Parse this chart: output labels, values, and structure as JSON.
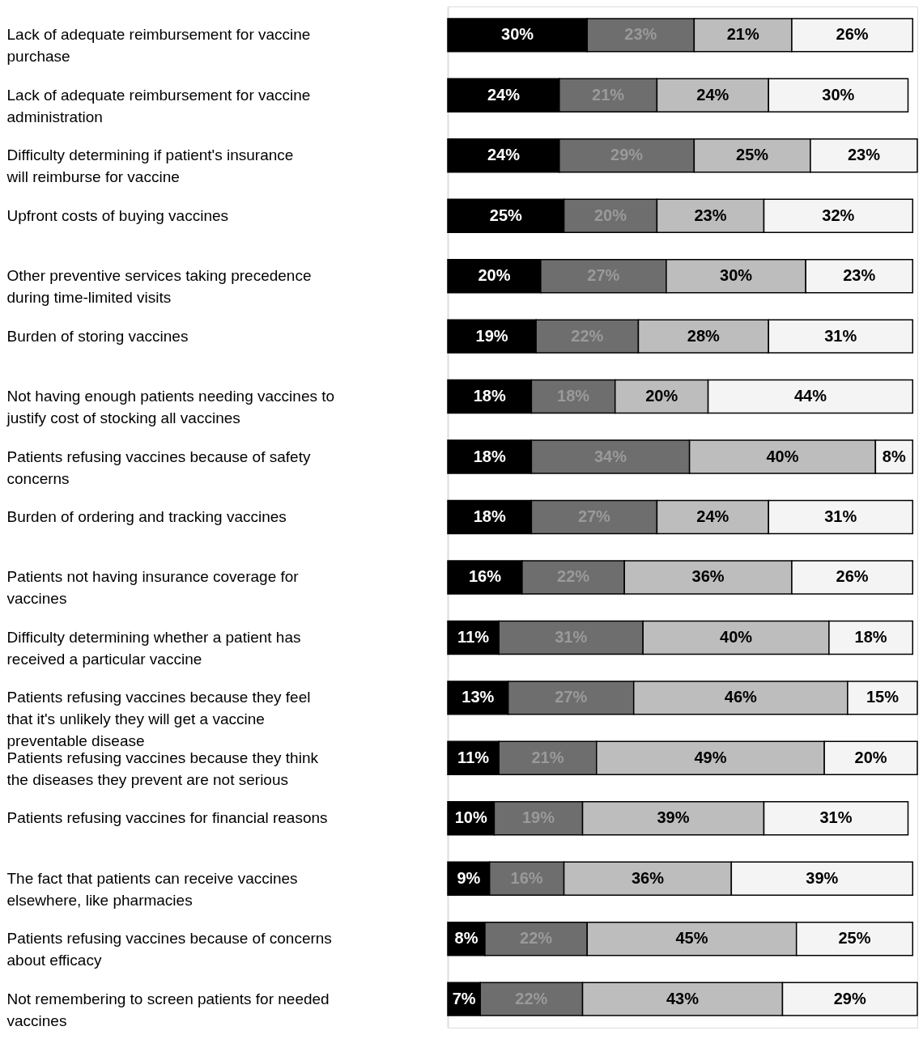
{
  "chart_data": {
    "type": "bar",
    "orientation": "horizontal",
    "stacked": true,
    "tick_labels": "y",
    "categories": [
      "Lack of adequate reimbursement for vaccine purchase",
      "Lack of adequate reimbursement for vaccine administration",
      "Difficulty determining if patient's insurance will reimburse for vaccine",
      "Upfront costs of buying vaccines",
      "Other preventive services taking precedence during time-limited visits",
      "Burden of storing vaccines",
      "Not having enough patients needing vaccines to justify cost of stocking all vaccines",
      "Patients refusing vaccines because of safety concerns",
      "Burden of ordering and tracking vaccines",
      "Patients not having insurance coverage for vaccines",
      "Difficulty determining whether a patient has received a particular vaccine",
      "Patients refusing vaccines because they feel that it's unlikely they will get a vaccine preventable disease",
      "Patients refusing vaccines because they think the diseases they prevent are not serious",
      "Patients refusing vaccines for financial reasons",
      "The fact that patients can receive vaccines elsewhere, like pharmacies",
      "Patients refusing vaccines because of concerns about efficacy",
      "Not remembering to screen patients for needed vaccines"
    ],
    "series": [
      {
        "color": "#000000",
        "values": [
          30,
          24,
          24,
          25,
          20,
          19,
          18,
          18,
          18,
          16,
          11,
          13,
          11,
          10,
          9,
          8,
          7
        ],
        "value_labels": [
          "30%",
          "24%",
          "24%",
          "25%",
          "20%",
          "19%",
          "18%",
          "18%",
          "18%",
          "16%",
          "11%",
          "13%",
          "11%",
          "10%",
          "9%",
          "8%",
          "7%"
        ]
      },
      {
        "color": "#6e6e6e",
        "values": [
          23,
          21,
          29,
          20,
          27,
          22,
          18,
          34,
          27,
          22,
          31,
          27,
          21,
          19,
          16,
          22,
          22
        ],
        "value_labels": [
          "23%",
          "21%",
          "29%",
          "20%",
          "27%",
          "22%",
          "18%",
          "34%",
          "27%",
          "22%",
          "31%",
          "27%",
          "21%",
          "19%",
          "16%",
          "22%",
          "22%"
        ]
      },
      {
        "color": "#bdbdbd",
        "values": [
          21,
          24,
          25,
          23,
          30,
          28,
          20,
          40,
          24,
          36,
          40,
          46,
          49,
          39,
          36,
          45,
          43
        ],
        "value_labels": [
          "21%",
          "24%",
          "25%",
          "23%",
          "30%",
          "28%",
          "20%",
          "40%",
          "24%",
          "36%",
          "40%",
          "46%",
          "49%",
          "39%",
          "36%",
          "45%",
          "43%"
        ]
      },
      {
        "color": "#f4f4f4",
        "values": [
          26,
          30,
          23,
          32,
          23,
          31,
          44,
          8,
          31,
          26,
          18,
          15,
          20,
          31,
          39,
          25,
          29
        ],
        "value_labels": [
          "26%",
          "30%",
          "23%",
          "32%",
          "23%",
          "31%",
          "44%",
          "8%",
          "31%",
          "26%",
          "18%",
          "15%",
          "20%",
          "31%",
          "39%",
          "25%",
          "29%"
        ]
      }
    ]
  }
}
